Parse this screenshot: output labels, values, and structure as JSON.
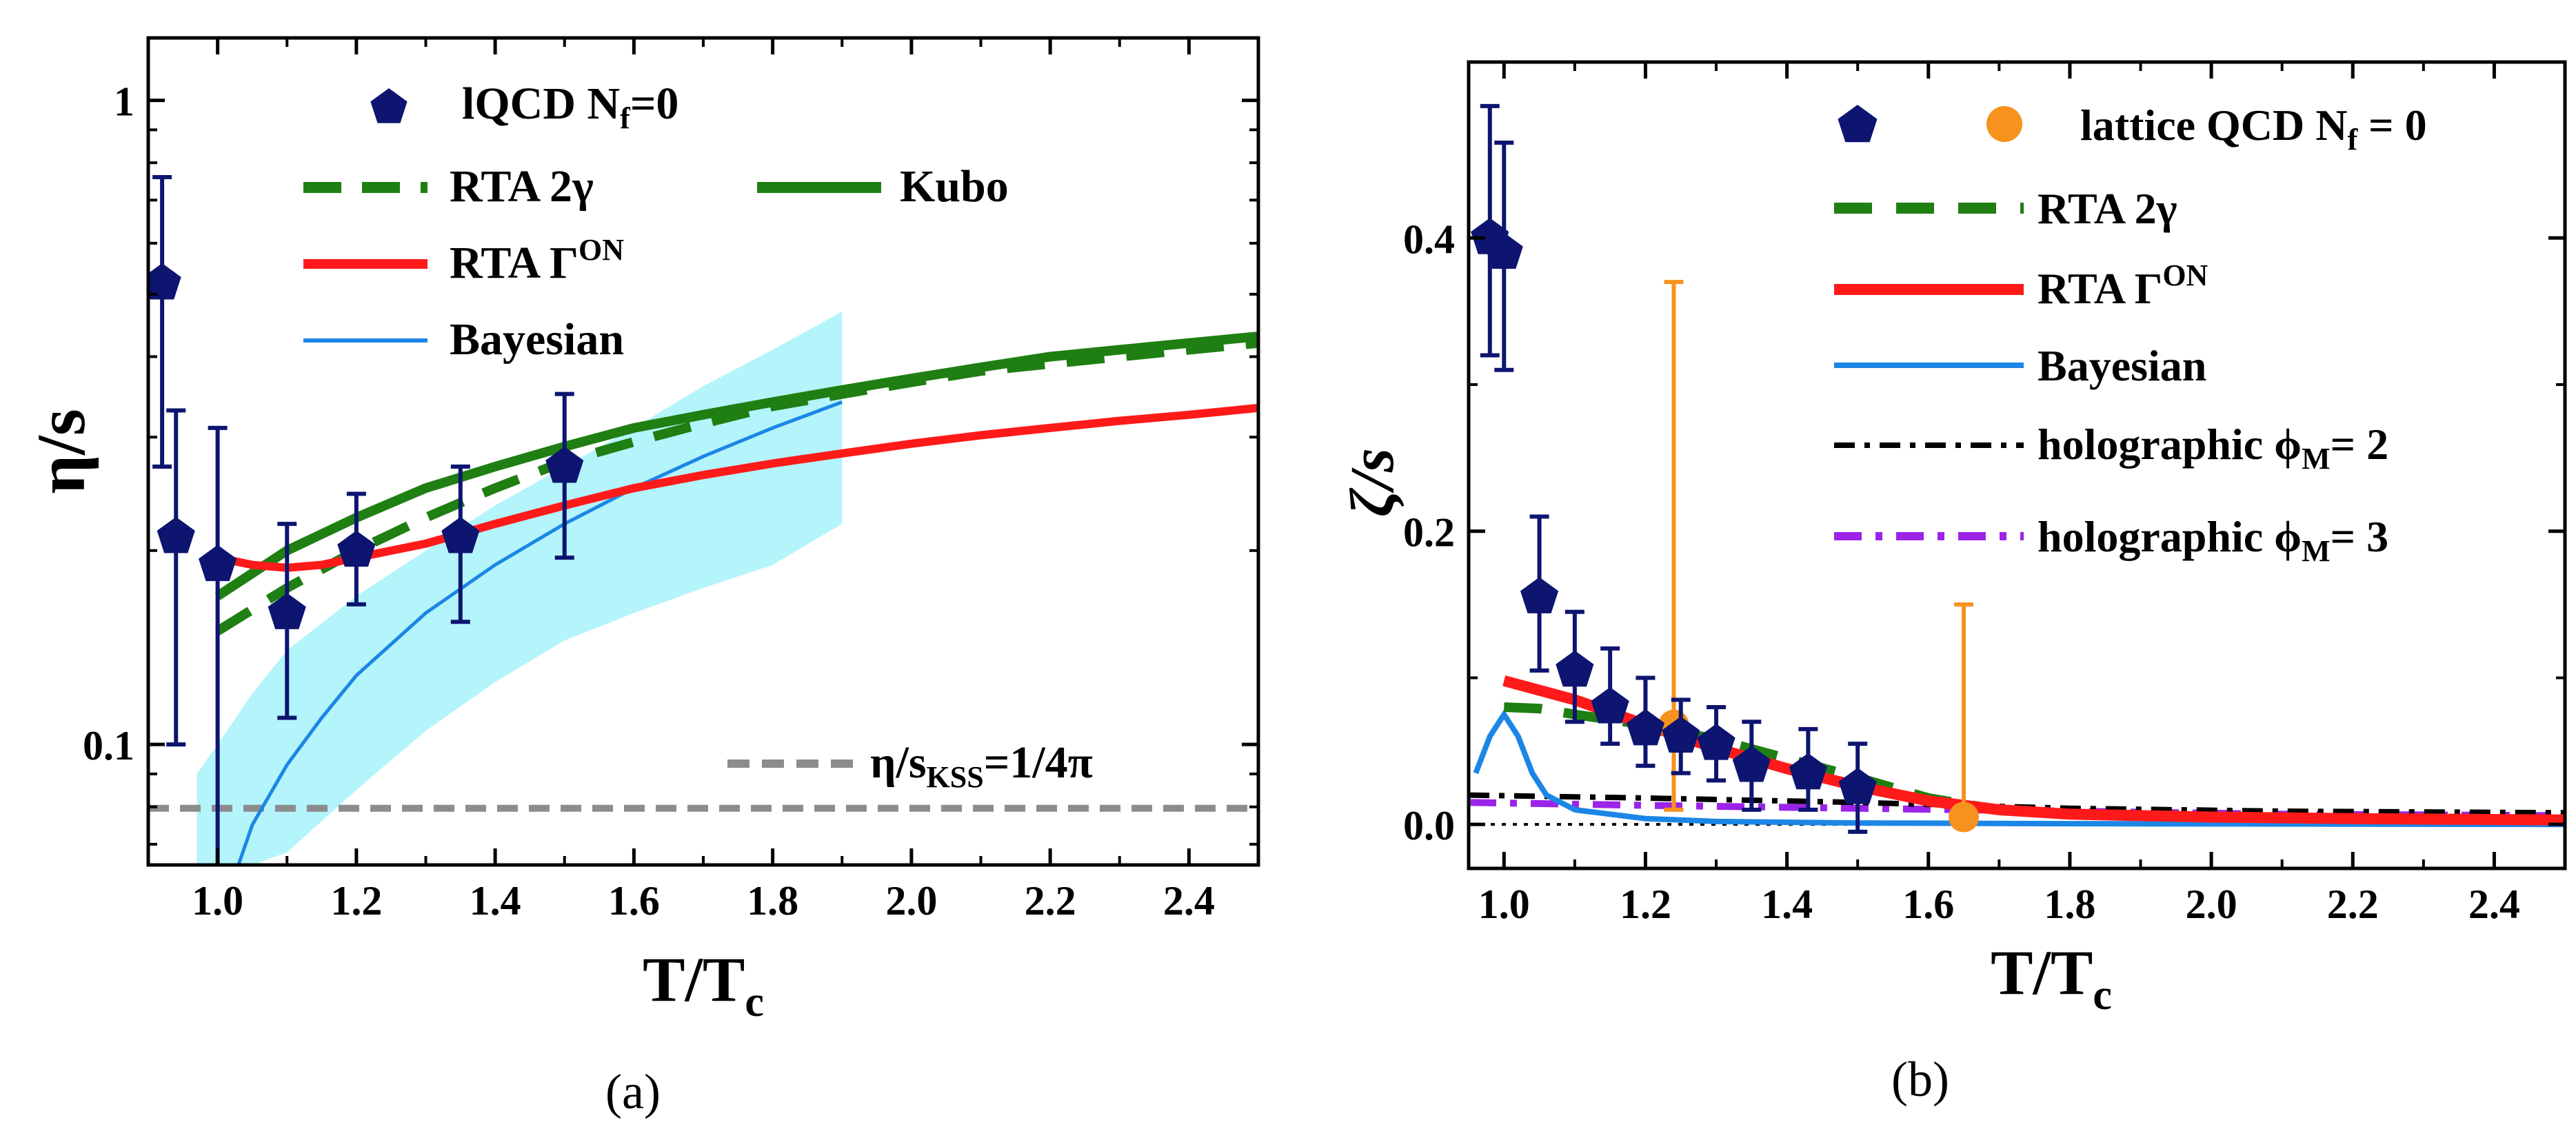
{
  "chart_data": [
    {
      "type": "line",
      "panel_label": "(a)",
      "yscale": "log",
      "xlim": [
        0.9,
        2.5
      ],
      "ylim": [
        0.065,
        1.25
      ],
      "xlabel": {
        "main": "T/T",
        "sub": "c"
      },
      "ylabel": "η/s",
      "xticks": [
        1.0,
        1.2,
        1.4,
        1.6,
        1.8,
        2.0,
        2.2,
        2.4
      ],
      "xtick_labels": [
        "1.0",
        "1.2",
        "1.4",
        "1.6",
        "1.8",
        "2.0",
        "2.2",
        "2.4"
      ],
      "yticks": [
        0.1,
        1
      ],
      "ytick_labels": [
        "0.1",
        "1"
      ],
      "colors": {
        "lqcd": "#0d1570",
        "rta2g": "#1f7f12",
        "kubo": "#1f7f12",
        "rtaon": "#ff1a1a",
        "bayes": "#1c86e6",
        "band": "#b4f4fb",
        "kss": "#8c8c8c"
      },
      "legend": {
        "lqcd": {
          "main": "lQCD N",
          "sub": "f",
          "tail": "=0"
        },
        "rta2g": "RTA 2γ",
        "kubo": "Kubo",
        "rtaon": {
          "main": "RTA Γ",
          "sup": "ON"
        },
        "bayes": "Bayesian",
        "kss": {
          "main": "η/s",
          "sub": "KSS",
          "tail": "=1/4π"
        }
      },
      "lqcd_points": [
        {
          "x": 0.92,
          "y": 0.52,
          "lo": 0.27,
          "hi": 0.76
        },
        {
          "x": 0.94,
          "y": 0.21,
          "lo": 0.1,
          "hi": 0.33
        },
        {
          "x": 1.0,
          "y": 0.19,
          "lo": 0.06,
          "hi": 0.31
        },
        {
          "x": 1.1,
          "y": 0.16,
          "lo": 0.11,
          "hi": 0.22
        },
        {
          "x": 1.2,
          "y": 0.2,
          "lo": 0.165,
          "hi": 0.245
        },
        {
          "x": 1.35,
          "y": 0.21,
          "lo": 0.155,
          "hi": 0.27
        },
        {
          "x": 1.5,
          "y": 0.27,
          "lo": 0.195,
          "hi": 0.35
        }
      ],
      "kubo": {
        "x": [
          1.0,
          1.1,
          1.2,
          1.3,
          1.4,
          1.5,
          1.6,
          1.7,
          1.8,
          1.9,
          2.0,
          2.1,
          2.2,
          2.3,
          2.4,
          2.5
        ],
        "y": [
          0.17,
          0.2,
          0.225,
          0.25,
          0.27,
          0.29,
          0.31,
          0.325,
          0.34,
          0.355,
          0.37,
          0.385,
          0.4,
          0.41,
          0.42,
          0.43
        ]
      },
      "rta2g": {
        "x": [
          1.0,
          1.1,
          1.2,
          1.3,
          1.4,
          1.5,
          1.6,
          1.7,
          1.8,
          1.9,
          2.0,
          2.1,
          2.2,
          2.3,
          2.4,
          2.5
        ],
        "y": [
          0.15,
          0.175,
          0.2,
          0.225,
          0.25,
          0.275,
          0.295,
          0.315,
          0.335,
          0.35,
          0.365,
          0.38,
          0.39,
          0.4,
          0.41,
          0.42
        ]
      },
      "rtaon": {
        "x": [
          1.0,
          1.05,
          1.1,
          1.15,
          1.2,
          1.3,
          1.4,
          1.5,
          1.6,
          1.7,
          1.8,
          1.9,
          2.0,
          2.1,
          2.2,
          2.3,
          2.4,
          2.5
        ],
        "y": [
          0.195,
          0.19,
          0.188,
          0.19,
          0.195,
          0.205,
          0.22,
          0.235,
          0.25,
          0.262,
          0.273,
          0.283,
          0.293,
          0.302,
          0.31,
          0.318,
          0.325,
          0.333
        ]
      },
      "bayesian": {
        "x": [
          1.03,
          1.05,
          1.1,
          1.15,
          1.2,
          1.3,
          1.4,
          1.5,
          1.6,
          1.7,
          1.8,
          1.9
        ],
        "y": [
          0.065,
          0.075,
          0.093,
          0.11,
          0.128,
          0.16,
          0.19,
          0.22,
          0.25,
          0.28,
          0.31,
          0.34
        ]
      },
      "band": {
        "x": [
          0.97,
          1.0,
          1.05,
          1.1,
          1.2,
          1.3,
          1.4,
          1.5,
          1.6,
          1.7,
          1.8,
          1.9
        ],
        "lo": [
          0.065,
          0.065,
          0.065,
          0.068,
          0.085,
          0.105,
          0.125,
          0.145,
          0.16,
          0.175,
          0.19,
          0.22
        ],
        "hi": [
          0.09,
          0.1,
          0.12,
          0.14,
          0.17,
          0.2,
          0.235,
          0.27,
          0.31,
          0.36,
          0.41,
          0.47
        ]
      },
      "kss_value": 0.0796
    },
    {
      "type": "line",
      "panel_label": "(b)",
      "yscale": "linear",
      "xlim": [
        0.95,
        2.5
      ],
      "ylim": [
        -0.03,
        0.52
      ],
      "xlabel": {
        "main": "T/T",
        "sub": "c"
      },
      "ylabel": "ζ/s",
      "xticks": [
        1.0,
        1.2,
        1.4,
        1.6,
        1.8,
        2.0,
        2.2,
        2.4
      ],
      "xtick_labels": [
        "1.0",
        "1.2",
        "1.4",
        "1.6",
        "1.8",
        "2.0",
        "2.2",
        "2.4"
      ],
      "yticks": [
        0.0,
        0.2,
        0.4
      ],
      "ytick_labels": [
        "0.0",
        "0.2",
        "0.4"
      ],
      "colors": {
        "lqcd": "#0d1570",
        "lqcd2": "#f7921e",
        "rta2g": "#1f7f12",
        "rtaon": "#ff1a1a",
        "bayes": "#1c86e6",
        "holo2": "#000000",
        "holo3": "#9b24e8"
      },
      "legend": {
        "lqcd": {
          "main": "lattice QCD N",
          "sub": "f",
          "tail": " = 0"
        },
        "rta2g": "RTA 2γ",
        "rtaon": {
          "main": "RTA Γ",
          "sup": "ON"
        },
        "bayes": "Bayesian",
        "holo2": {
          "main": "holographic ϕ",
          "sub": "M",
          "tail": "= 2"
        },
        "holo3": {
          "main": "holographic ϕ",
          "sub": "M",
          "tail": "= 3"
        }
      },
      "lqcd_points": [
        {
          "x": 0.98,
          "y": 0.4,
          "lo": 0.32,
          "hi": 0.49
        },
        {
          "x": 1.0,
          "y": 0.39,
          "lo": 0.31,
          "hi": 0.465
        },
        {
          "x": 1.05,
          "y": 0.155,
          "lo": 0.105,
          "hi": 0.21
        },
        {
          "x": 1.1,
          "y": 0.105,
          "lo": 0.07,
          "hi": 0.145
        },
        {
          "x": 1.15,
          "y": 0.08,
          "lo": 0.055,
          "hi": 0.12
        },
        {
          "x": 1.2,
          "y": 0.065,
          "lo": 0.04,
          "hi": 0.1
        },
        {
          "x": 1.25,
          "y": 0.06,
          "lo": 0.035,
          "hi": 0.085
        },
        {
          "x": 1.3,
          "y": 0.055,
          "lo": 0.03,
          "hi": 0.08
        },
        {
          "x": 1.35,
          "y": 0.04,
          "lo": 0.01,
          "hi": 0.07
        },
        {
          "x": 1.43,
          "y": 0.035,
          "lo": 0.01,
          "hi": 0.065
        },
        {
          "x": 1.5,
          "y": 0.025,
          "lo": -0.005,
          "hi": 0.055
        }
      ],
      "lqcd2_points": [
        {
          "x": 1.24,
          "y": 0.068,
          "lo": 0.01,
          "hi": 0.37
        },
        {
          "x": 1.65,
          "y": 0.005,
          "lo": 0.0,
          "hi": 0.15
        }
      ],
      "rtaon": {
        "x": [
          1.0,
          1.1,
          1.2,
          1.3,
          1.4,
          1.5,
          1.6,
          1.7,
          1.8,
          2.0,
          2.2,
          2.5
        ],
        "y": [
          0.098,
          0.085,
          0.068,
          0.052,
          0.038,
          0.026,
          0.016,
          0.01,
          0.007,
          0.005,
          0.004,
          0.003
        ]
      },
      "rta2g": {
        "x": [
          1.0,
          1.05,
          1.1,
          1.2,
          1.3,
          1.4,
          1.5,
          1.6,
          1.7,
          1.8,
          2.0,
          2.2,
          2.5
        ],
        "y": [
          0.08,
          0.079,
          0.075,
          0.068,
          0.058,
          0.045,
          0.032,
          0.018,
          0.01,
          0.007,
          0.005,
          0.004,
          0.003
        ]
      },
      "bayesian": {
        "x": [
          0.96,
          0.98,
          1.0,
          1.02,
          1.04,
          1.06,
          1.1,
          1.2,
          1.3,
          1.5,
          1.8,
          2.5
        ],
        "y": [
          0.035,
          0.06,
          0.075,
          0.06,
          0.035,
          0.02,
          0.01,
          0.004,
          0.002,
          0.001,
          0.0005,
          0.0
        ]
      },
      "holo2": {
        "x": [
          0.95,
          1.2,
          1.5,
          1.8,
          2.1,
          2.5
        ],
        "y": [
          0.02,
          0.018,
          0.015,
          0.011,
          0.009,
          0.008
        ]
      },
      "holo3": {
        "x": [
          0.95,
          1.2,
          1.5,
          1.8,
          2.1,
          2.5
        ],
        "y": [
          0.015,
          0.013,
          0.011,
          0.009,
          0.007,
          0.006
        ]
      },
      "zero_line": 0.0
    }
  ]
}
